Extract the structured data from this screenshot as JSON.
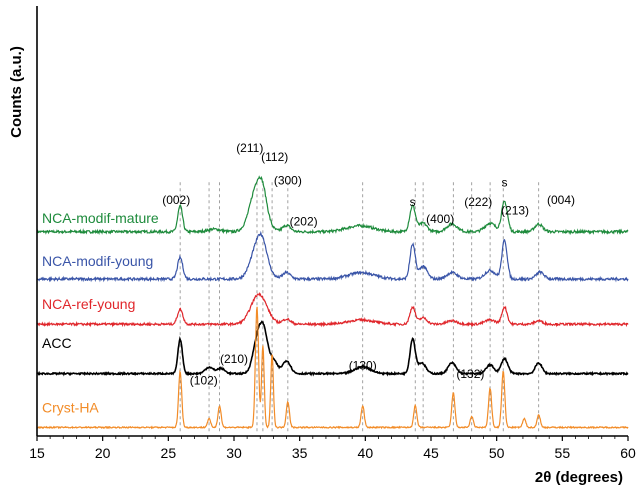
{
  "chart_data": {
    "type": "line",
    "title": "",
    "xlabel": "2θ (degrees)",
    "ylabel": "Counts (a.u.)",
    "xlim": [
      15,
      60
    ],
    "xticks": [
      15,
      20,
      25,
      30,
      35,
      40,
      45,
      50,
      55,
      60
    ],
    "ylim": [
      0,
      100
    ],
    "grid": false,
    "legend": "inline-left",
    "series": [
      {
        "name": "NCA-modif-mature",
        "color": "#1e8b3c",
        "offset": 45,
        "baseline": 2.5,
        "noise": 0.6,
        "peaks": [
          [
            25.9,
            6,
            0.18
          ],
          [
            28.5,
            0.6,
            0.5
          ],
          [
            31.8,
            11,
            0.55
          ],
          [
            32.2,
            3,
            0.3
          ],
          [
            34.0,
            1.5,
            0.3
          ],
          [
            39.6,
            1.4,
            1.0
          ],
          [
            43.6,
            6,
            0.22
          ],
          [
            44.4,
            2,
            0.3
          ],
          [
            46.6,
            1.8,
            0.4
          ],
          [
            49.5,
            2,
            0.4
          ],
          [
            50.6,
            7,
            0.22
          ],
          [
            53.2,
            1.8,
            0.3
          ]
        ]
      },
      {
        "name": "NCA-modif-young",
        "color": "#3a55a8",
        "offset": 34,
        "baseline": 2.5,
        "noise": 0.6,
        "peaks": [
          [
            25.9,
            5,
            0.2
          ],
          [
            31.9,
            9,
            0.55
          ],
          [
            32.2,
            2,
            0.3
          ],
          [
            34.0,
            1.5,
            0.3
          ],
          [
            39.7,
            1.5,
            1.0
          ],
          [
            43.6,
            8,
            0.2
          ],
          [
            44.4,
            3,
            0.3
          ],
          [
            46.6,
            1.5,
            0.4
          ],
          [
            49.5,
            2,
            0.4
          ],
          [
            50.6,
            9,
            0.2
          ],
          [
            53.3,
            1.6,
            0.3
          ]
        ]
      },
      {
        "name": "NCA-ref-young",
        "color": "#e0262b",
        "offset": 24,
        "baseline": 2,
        "noise": 0.5,
        "peaks": [
          [
            25.9,
            3.5,
            0.2
          ],
          [
            31.9,
            7,
            0.6
          ],
          [
            34.0,
            1.2,
            0.3
          ],
          [
            39.7,
            1.0,
            1.0
          ],
          [
            43.6,
            4,
            0.2
          ],
          [
            44.4,
            1.5,
            0.3
          ],
          [
            46.6,
            0.8,
            0.4
          ],
          [
            49.5,
            1.0,
            0.4
          ],
          [
            50.6,
            4,
            0.2
          ],
          [
            53.2,
            0.8,
            0.3
          ]
        ]
      },
      {
        "name": "ACC",
        "color": "#000000",
        "offset": 14,
        "baseline": 0.5,
        "noise": 0.35,
        "peaks": [
          [
            25.9,
            8,
            0.17
          ],
          [
            28.1,
            1.5,
            0.3
          ],
          [
            29.0,
            1.2,
            0.3
          ],
          [
            31.8,
            8,
            0.35
          ],
          [
            32.3,
            8,
            0.3
          ],
          [
            33.0,
            3,
            0.3
          ],
          [
            34.0,
            3,
            0.3
          ],
          [
            39.8,
            1.6,
            0.6
          ],
          [
            43.6,
            8,
            0.2
          ],
          [
            44.3,
            2.5,
            0.3
          ],
          [
            46.6,
            2.5,
            0.3
          ],
          [
            49.5,
            2,
            0.3
          ],
          [
            50.6,
            3.5,
            0.25
          ],
          [
            53.2,
            2.5,
            0.25
          ]
        ]
      },
      {
        "name": "Cryst-HA",
        "color": "#f28c28",
        "offset": 2,
        "baseline": 0,
        "noise": 0.3,
        "peaks": [
          [
            25.9,
            13,
            0.12
          ],
          [
            28.1,
            2,
            0.12
          ],
          [
            28.9,
            5,
            0.12
          ],
          [
            31.75,
            28,
            0.12
          ],
          [
            32.2,
            19,
            0.1
          ],
          [
            32.9,
            17,
            0.1
          ],
          [
            34.1,
            6,
            0.12
          ],
          [
            39.8,
            5,
            0.12
          ],
          [
            43.8,
            5,
            0.12
          ],
          [
            46.7,
            8,
            0.12
          ],
          [
            48.1,
            2.5,
            0.12
          ],
          [
            49.5,
            9,
            0.12
          ],
          [
            50.5,
            13,
            0.12
          ],
          [
            52.1,
            2,
            0.12
          ],
          [
            53.2,
            3,
            0.12
          ]
        ]
      }
    ],
    "reference_lines": [
      25.9,
      28.1,
      28.9,
      31.75,
      32.2,
      32.9,
      34.1,
      39.8,
      43.8,
      44.4,
      46.7,
      48.1,
      49.5,
      50.5,
      53.2
    ],
    "annotations": [
      {
        "text": "(002)",
        "x": 25.6,
        "y": 54
      },
      {
        "text": "(211)",
        "x": 31.2,
        "y": 66
      },
      {
        "text": "(112)",
        "x": 33.1,
        "y": 64
      },
      {
        "text": "(300)",
        "x": 34.1,
        "y": 58.5
      },
      {
        "text": "(202)",
        "x": 35.3,
        "y": 49
      },
      {
        "text": "s",
        "x": 43.6,
        "y": 53.5
      },
      {
        "text": "(400)",
        "x": 45.7,
        "y": 49.5
      },
      {
        "text": "(222)",
        "x": 48.6,
        "y": 53.5
      },
      {
        "text": "(213)",
        "x": 51.4,
        "y": 51.5
      },
      {
        "text": "s",
        "x": 50.6,
        "y": 58
      },
      {
        "text": "(004)",
        "x": 54.9,
        "y": 54
      },
      {
        "text": "(102)",
        "x": 27.7,
        "y": 12
      },
      {
        "text": "(210)",
        "x": 30.0,
        "y": 17
      },
      {
        "text": "(130)",
        "x": 39.8,
        "y": 15.5
      },
      {
        "text": "(132)",
        "x": 48.0,
        "y": 13.5
      }
    ]
  }
}
